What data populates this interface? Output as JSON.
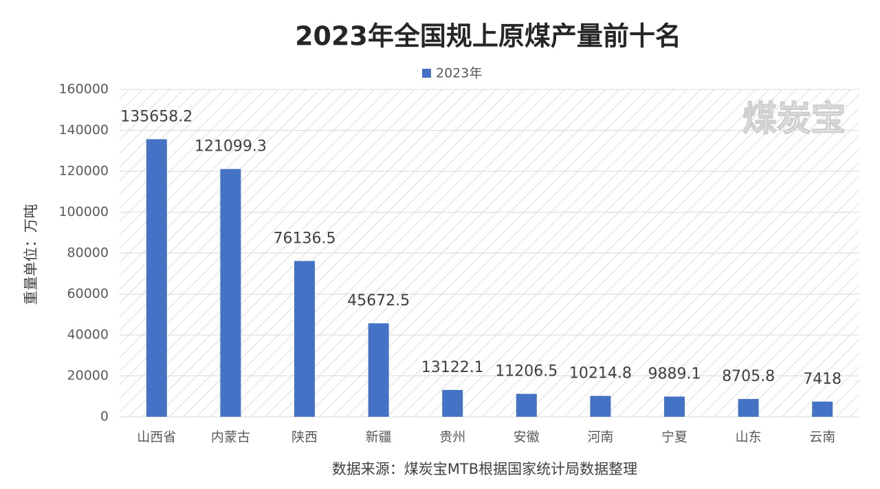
{
  "chart_data": {
    "type": "bar",
    "title": "2023年全国规上原煤产量前十名",
    "y_label": "重量单位：万吨",
    "source": "数据来源：煤炭宝MTB根据国家统计局数据整理",
    "watermark": "煤炭宝",
    "categories": [
      "山西省",
      "内蒙古",
      "陕西",
      "新疆",
      "贵州",
      "安徽",
      "河南",
      "宁夏",
      "山东",
      "云南"
    ],
    "series": [
      {
        "name": "2023年",
        "color": "#4472c4",
        "values": [
          135658.2,
          121099.3,
          76136.5,
          45672.5,
          13122.1,
          11206.5,
          10214.8,
          9889.1,
          8705.8,
          7418
        ]
      }
    ],
    "ylim": [
      0,
      160000
    ],
    "yticks": [
      0,
      20000,
      40000,
      60000,
      80000,
      100000,
      120000,
      140000,
      160000
    ],
    "grid": true
  }
}
